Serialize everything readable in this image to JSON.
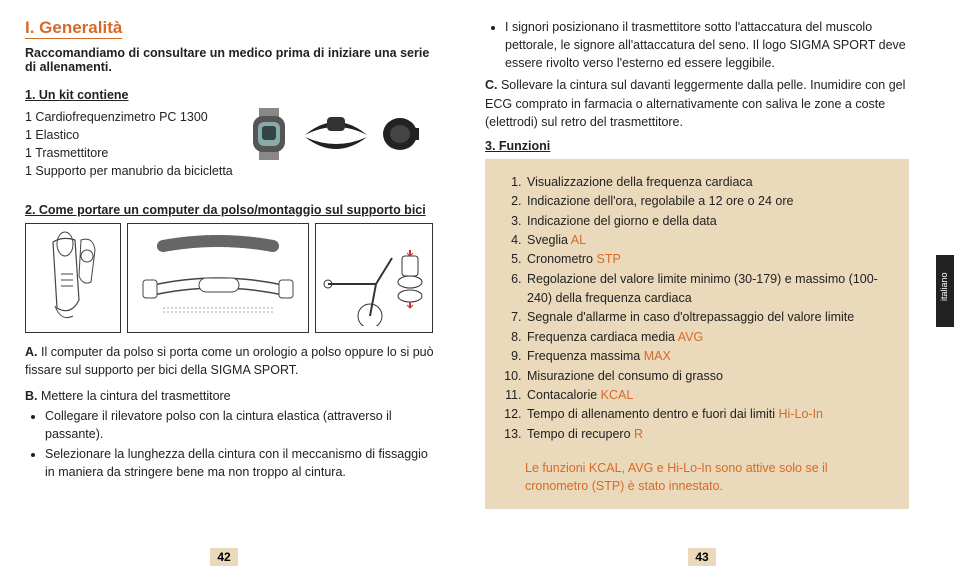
{
  "left": {
    "heading": "I. Generalità",
    "intro": "Raccomandiamo di consultare un medico prima di iniziare una serie di allenamenti.",
    "kit_heading": "1. Un kit contiene",
    "kit_items": [
      "1 Cardiofrequenzimetro PC 1300",
      "1 Elastico",
      "1 Trasmettitore",
      "1 Supporto per manubrio da bicicletta"
    ],
    "wear_heading": "2. Come portare un computer da polso/montaggio sul supporto bici",
    "para_a_letter": "A.",
    "para_a": " Il computer da polso si porta come un orologio a polso oppure lo si può fissare sul supporto per bici della SIGMA SPORT.",
    "para_b_letter": "B.",
    "para_b": " Mettere la cintura del trasmettitore",
    "b_bullets": [
      "Collegare il rilevatore  polso con la cintura elastica (attraverso il passante).",
      "Selezionare la lunghezza della cintura con il meccanismo di fissaggio in maniera da stringere bene ma non troppo al cintura."
    ],
    "page_num": "42"
  },
  "right": {
    "top_bullet": "I signori posizionano il trasmettitore sotto l'attaccatura del muscolo pettorale, le signore all'attaccatura del seno. Il logo SIGMA SPORT deve essere rivolto verso l'esterno ed essere leggibile.",
    "para_c_letter": "C.",
    "para_c": " Sollevare la cintura sul davanti leggermente dalla pelle. Inumidire con gel ECG comprato in farmacia o alternativamente con saliva le zone a coste (elettrodi) sul retro del trasmettitore.",
    "funzioni_heading": "3. Funzioni",
    "funzioni": [
      {
        "text": "Visualizzazione della frequenza cardiaca"
      },
      {
        "text": "Indicazione dell'ora, regolabile a 12 ore o 24 ore"
      },
      {
        "text": "Indicazione del giorno e della data"
      },
      {
        "text": "Sveglia ",
        "suffix": "AL"
      },
      {
        "text": "Cronometro ",
        "suffix": "STP"
      },
      {
        "text": "Regolazione del valore limite minimo (30-179) e massimo (100-240) della frequenza cardiaca"
      },
      {
        "text": "Segnale d'allarme in caso d'oltrepassaggio del valore limite"
      },
      {
        "text": "Frequenza cardiaca media ",
        "suffix": "AVG"
      },
      {
        "text": "Frequenza massima ",
        "suffix": "MAX"
      },
      {
        "text": "Misurazione del consumo di grasso"
      },
      {
        "text": "Contacalorie ",
        "suffix": "KCAL"
      },
      {
        "text": "Tempo di allenamento dentro e fuori dai limiti ",
        "suffix": "Hi-Lo-In"
      },
      {
        "text": "Tempo di recupero ",
        "suffix": "R"
      }
    ],
    "note": "Le funzioni KCAL, AVG e Hi-Lo-In sono attive solo se il cronometro (STP) è stato innestato.",
    "page_num": "43",
    "side_tab": "italiano"
  },
  "style": {
    "accent_color": "#d56a2b",
    "box_bg": "#ead9ba",
    "font_size_body": 12.5,
    "font_size_heading": 17
  }
}
